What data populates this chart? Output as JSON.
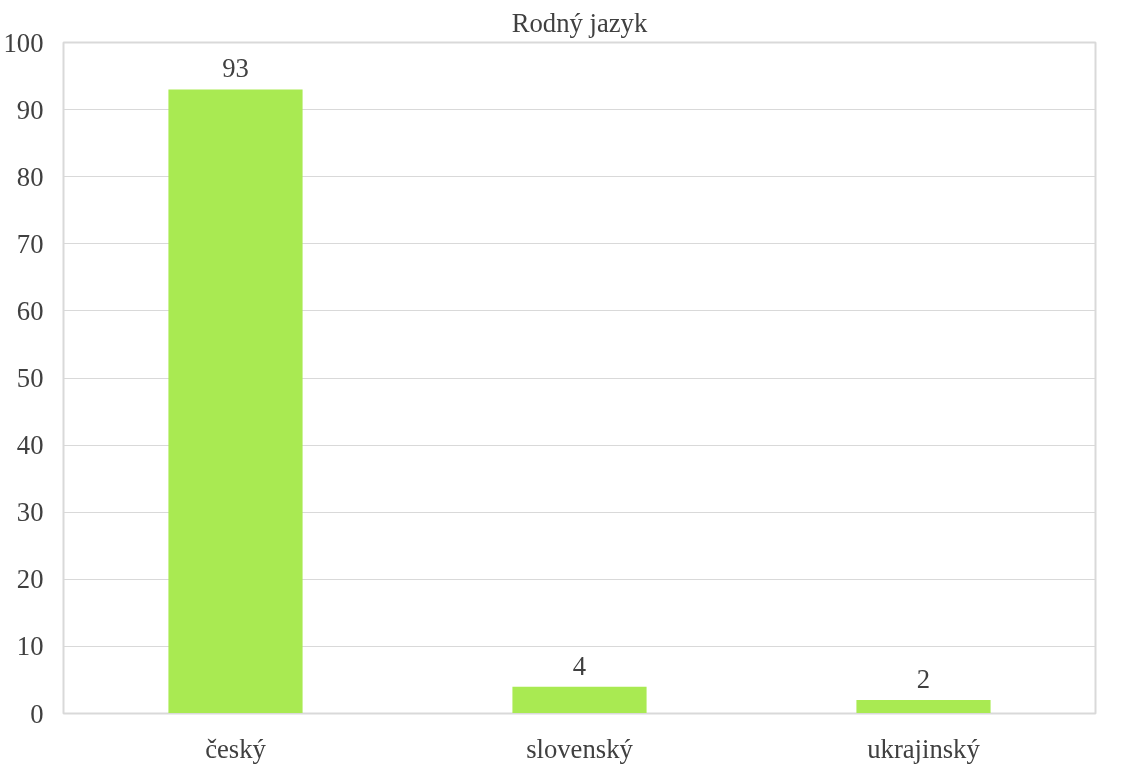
{
  "chart_data": {
    "type": "bar",
    "title": "Rodný jazyk",
    "categories": [
      "český",
      "slovenský",
      "ukrajinský"
    ],
    "values": [
      93,
      4,
      2
    ],
    "color": "#a9ea52",
    "ylim": [
      0,
      100
    ],
    "yticks": [
      0,
      10,
      20,
      30,
      40,
      50,
      60,
      70,
      80,
      90,
      100
    ],
    "grid": "y",
    "data_labels": true
  }
}
